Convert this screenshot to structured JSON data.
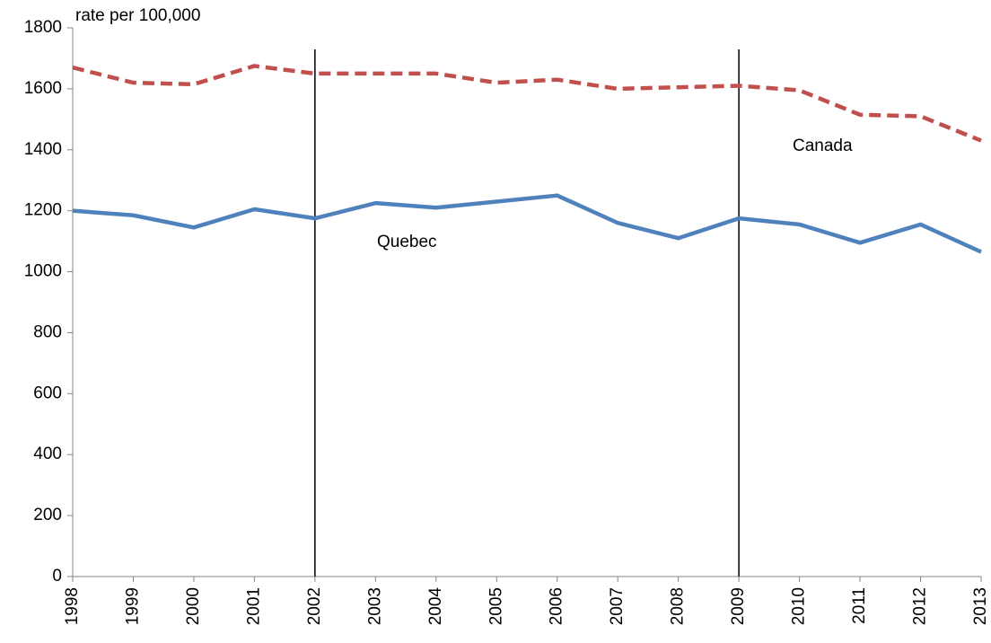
{
  "chart_data": {
    "type": "line",
    "y_label": "rate per 100,000",
    "x": [
      1998,
      1999,
      2000,
      2001,
      2002,
      2003,
      2004,
      2005,
      2006,
      2007,
      2008,
      2009,
      2010,
      2011,
      2012,
      2013
    ],
    "xlim": [
      1998,
      2013
    ],
    "xticks": [
      1998,
      1999,
      2000,
      2001,
      2002,
      2003,
      2004,
      2005,
      2006,
      2007,
      2008,
      2009,
      2010,
      2011,
      2012,
      2013
    ],
    "ylim": [
      0,
      1800
    ],
    "yticks": [
      0,
      200,
      400,
      600,
      800,
      1000,
      1200,
      1400,
      1600,
      1800
    ],
    "vlines": [
      2002,
      2009
    ],
    "series": [
      {
        "name": "Canada",
        "color": "#c0504d",
        "dashed": true,
        "values": [
          1670,
          1620,
          1615,
          1675,
          1650,
          1650,
          1650,
          1620,
          1630,
          1600,
          1605,
          1610,
          1595,
          1515,
          1510,
          1430
        ]
      },
      {
        "name": "Quebec",
        "color": "#4f81bd",
        "dashed": false,
        "values": [
          1200,
          1185,
          1145,
          1205,
          1175,
          1225,
          1210,
          1230,
          1250,
          1160,
          1110,
          1175,
          1155,
          1095,
          1155,
          1065
        ]
      }
    ]
  }
}
